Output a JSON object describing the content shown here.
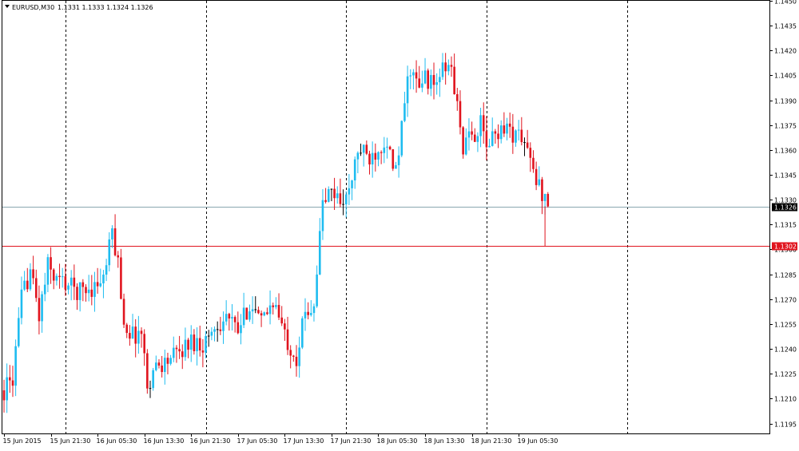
{
  "symbol_label": "EURUSD,M30",
  "ohlc_label": "1.1331 1.1333 1.1324 1.1326",
  "colors": {
    "bull": "#1ebcf0",
    "bear": "#e0141e",
    "doji": "#000000",
    "bid_line": "#8aa6b0",
    "bid_tag_bg": "#000000",
    "level_line": "#e0141e",
    "level_tag_bg": "#e0141e",
    "grid": "#000000"
  },
  "chart_data": {
    "type": "candlestick",
    "title": "EURUSD,M30",
    "y_axis": {
      "min": 1.1189,
      "max": 1.145,
      "ticks": [
        "1.1195",
        "1.1210",
        "1.1225",
        "1.1240",
        "1.1255",
        "1.1270",
        "1.1285",
        "1.1300",
        "1.1315",
        "1.1330",
        "1.1345",
        "1.1360",
        "1.1375",
        "1.1390",
        "1.1405",
        "1.1420",
        "1.1435",
        "1.1450"
      ]
    },
    "x_axis": {
      "labels": [
        "15 Jun 2015",
        "15 Jun 21:30",
        "16 Jun 05:30",
        "16 Jun 13:30",
        "16 Jun 21:30",
        "17 Jun 05:30",
        "17 Jun 13:30",
        "17 Jun 21:30",
        "18 Jun 05:30",
        "18 Jun 13:30",
        "18 Jun 21:30",
        "19 Jun 05:30"
      ],
      "bar_index": [
        0,
        16,
        32,
        48,
        64,
        80,
        96,
        112,
        128,
        144,
        160,
        176
      ]
    },
    "vertical_separators_bar_index": [
      21,
      69,
      117,
      165,
      213
    ],
    "grid": "vertical dashed day separators",
    "bid": {
      "value": 1.1326,
      "label": "1.1326"
    },
    "level": {
      "value": 1.1302,
      "label": "1.1302"
    },
    "waypoints": [
      [
        0,
        1.1215
      ],
      [
        3,
        1.1222
      ],
      [
        6,
        1.127
      ],
      [
        9,
        1.1288
      ],
      [
        12,
        1.126
      ],
      [
        15,
        1.129
      ],
      [
        18,
        1.1282
      ],
      [
        21,
        1.128
      ],
      [
        25,
        1.1275
      ],
      [
        30,
        1.1277
      ],
      [
        34,
        1.1282
      ],
      [
        37,
        1.131
      ],
      [
        39,
        1.1292
      ],
      [
        41,
        1.1256
      ],
      [
        44,
        1.1248
      ],
      [
        47,
        1.125
      ],
      [
        49,
        1.1218
      ],
      [
        52,
        1.123
      ],
      [
        55,
        1.1232
      ],
      [
        60,
        1.1238
      ],
      [
        64,
        1.1245
      ],
      [
        68,
        1.1243
      ],
      [
        72,
        1.1253
      ],
      [
        76,
        1.126
      ],
      [
        80,
        1.125
      ],
      [
        84,
        1.1268
      ],
      [
        88,
        1.1255
      ],
      [
        92,
        1.127
      ],
      [
        96,
        1.1248
      ],
      [
        100,
        1.1235
      ],
      [
        103,
        1.1262
      ],
      [
        106,
        1.1268
      ],
      [
        109,
        1.1328
      ],
      [
        112,
        1.1335
      ],
      [
        115,
        1.133
      ],
      [
        118,
        1.1333
      ],
      [
        121,
        1.136
      ],
      [
        125,
        1.1355
      ],
      [
        128,
        1.1362
      ],
      [
        131,
        1.1367
      ],
      [
        133,
        1.1345
      ],
      [
        135,
        1.1355
      ],
      [
        137,
        1.139
      ],
      [
        139,
        1.141
      ],
      [
        142,
        1.1395
      ],
      [
        144,
        1.1405
      ],
      [
        147,
        1.1398
      ],
      [
        150,
        1.1408
      ],
      [
        153,
        1.141
      ],
      [
        155,
        1.1385
      ],
      [
        157,
        1.1362
      ],
      [
        160,
        1.1368
      ],
      [
        163,
        1.1375
      ],
      [
        165,
        1.1362
      ],
      [
        168,
        1.137
      ],
      [
        171,
        1.1375
      ],
      [
        174,
        1.137
      ],
      [
        177,
        1.1368
      ],
      [
        179,
        1.136
      ],
      [
        181,
        1.1345
      ],
      [
        183,
        1.1338
      ],
      [
        185,
        1.1331
      ],
      [
        186,
        1.1326
      ]
    ],
    "bar_count": 187
  }
}
